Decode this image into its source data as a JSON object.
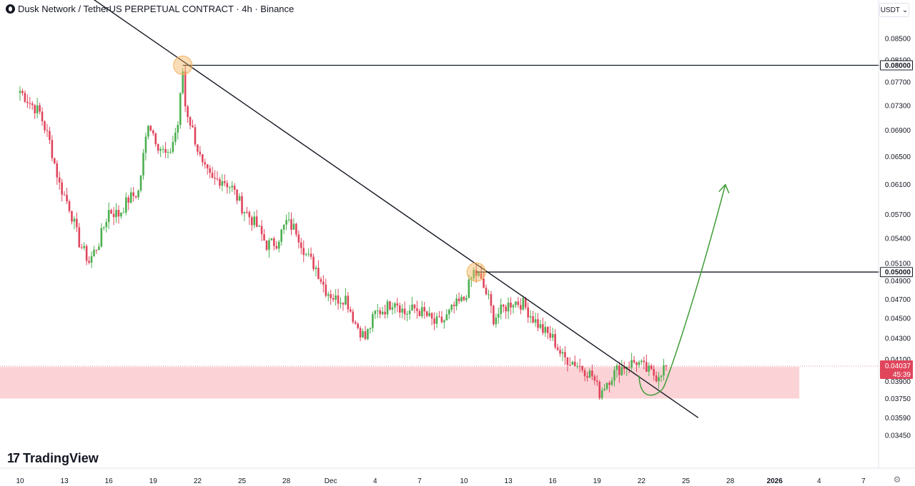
{
  "header": {
    "title": "Dusk Network / TetherUS PERPETUAL CONTRACT · 4h · Binance",
    "currency_label": "USDT",
    "dropdown_glyph": "⌄"
  },
  "brand": {
    "mark": "17",
    "name": "TradingView"
  },
  "settings_glyph": "⚙",
  "colors": {
    "up": "#4caf50",
    "down": "#e0455c",
    "zone": "#f9c4c8",
    "arrow": "#3f9c35",
    "touch": "#f2b35d"
  },
  "chart_data": {
    "type": "candlestick",
    "symbol": "Dusk Network / TetherUS PERPETUAL CONTRACT",
    "interval": "4h",
    "exchange": "Binance",
    "x_tick_labels": [
      "10",
      "13",
      "16",
      "19",
      "22",
      "25",
      "28",
      "Dec",
      "4",
      "7",
      "10",
      "13",
      "16",
      "19",
      "22",
      "25",
      "28",
      "2026",
      "4",
      "7"
    ],
    "x_tick_positions_bar_index": [
      0,
      18,
      36,
      54,
      72,
      90,
      108,
      126,
      144,
      162,
      180,
      198,
      216,
      234,
      252,
      270,
      288,
      306,
      324,
      342
    ],
    "y_tick_labels": [
      "0.08500",
      "0.08100",
      "0.07700",
      "0.07300",
      "0.06900",
      "0.06500",
      "0.06100",
      "0.05700",
      "0.05400",
      "0.05100",
      "0.04900",
      "0.04700",
      "0.04500",
      "0.04300",
      "0.04100",
      "0.03900",
      "0.03750",
      "0.03590",
      "0.03450"
    ],
    "y_scale": "log",
    "ylim": [
      0.0335,
      0.0884
    ],
    "current_price": {
      "value": "0.04037",
      "countdown": "45:39"
    },
    "horizontal_levels": [
      {
        "value": 0.08,
        "label": "0.08000"
      },
      {
        "value": 0.05,
        "label": "0.05000"
      }
    ],
    "demand_zone": {
      "low": 0.0375,
      "high": 0.0403,
      "x_end_bar": 316
    },
    "trendline": {
      "start": {
        "bar": 22,
        "price": 0.0958
      },
      "end": {
        "bar": 275,
        "price": 0.0359
      }
    },
    "touch_points": [
      {
        "bar": 66,
        "price": 0.08
      },
      {
        "bar": 185,
        "price": 0.05
      }
    ],
    "projection": [
      {
        "bar": 251,
        "price": 0.0395
      },
      {
        "bar": 258,
        "price": 0.0382
      },
      {
        "bar": 268,
        "price": 0.0425
      },
      {
        "bar": 286,
        "price": 0.061
      }
    ],
    "close_anchors": [
      [
        0,
        0.0755
      ],
      [
        4,
        0.0735
      ],
      [
        8,
        0.0718
      ],
      [
        12,
        0.0672
      ],
      [
        16,
        0.061
      ],
      [
        20,
        0.058
      ],
      [
        24,
        0.0535
      ],
      [
        28,
        0.0512
      ],
      [
        32,
        0.0535
      ],
      [
        36,
        0.0575
      ],
      [
        40,
        0.057
      ],
      [
        44,
        0.059
      ],
      [
        48,
        0.06
      ],
      [
        52,
        0.0705
      ],
      [
        56,
        0.0668
      ],
      [
        60,
        0.0648
      ],
      [
        64,
        0.07
      ],
      [
        66,
        0.079
      ],
      [
        67,
        0.073
      ],
      [
        70,
        0.069
      ],
      [
        74,
        0.0635
      ],
      [
        78,
        0.0615
      ],
      [
        82,
        0.0618
      ],
      [
        86,
        0.0605
      ],
      [
        90,
        0.058
      ],
      [
        96,
        0.0555
      ],
      [
        100,
        0.0532
      ],
      [
        104,
        0.0535
      ],
      [
        108,
        0.056
      ],
      [
        112,
        0.055
      ],
      [
        116,
        0.052
      ],
      [
        120,
        0.0505
      ],
      [
        124,
        0.048
      ],
      [
        128,
        0.047
      ],
      [
        132,
        0.0472
      ],
      [
        136,
        0.0445
      ],
      [
        140,
        0.043
      ],
      [
        144,
        0.0455
      ],
      [
        148,
        0.046
      ],
      [
        152,
        0.047
      ],
      [
        156,
        0.0455
      ],
      [
        160,
        0.046
      ],
      [
        164,
        0.0455
      ],
      [
        168,
        0.0445
      ],
      [
        172,
        0.0448
      ],
      [
        176,
        0.0462
      ],
      [
        180,
        0.047
      ],
      [
        184,
        0.05
      ],
      [
        186,
        0.0495
      ],
      [
        190,
        0.047
      ],
      [
        192,
        0.045
      ],
      [
        196,
        0.046
      ],
      [
        200,
        0.0468
      ],
      [
        204,
        0.0465
      ],
      [
        208,
        0.045
      ],
      [
        212,
        0.0438
      ],
      [
        216,
        0.043
      ],
      [
        220,
        0.0412
      ],
      [
        224,
        0.0408
      ],
      [
        228,
        0.0402
      ],
      [
        232,
        0.0395
      ],
      [
        235,
        0.038
      ],
      [
        238,
        0.039
      ],
      [
        242,
        0.04
      ],
      [
        246,
        0.0405
      ],
      [
        250,
        0.0408
      ],
      [
        254,
        0.04
      ],
      [
        258,
        0.0395
      ],
      [
        262,
        0.0404
      ]
    ]
  }
}
